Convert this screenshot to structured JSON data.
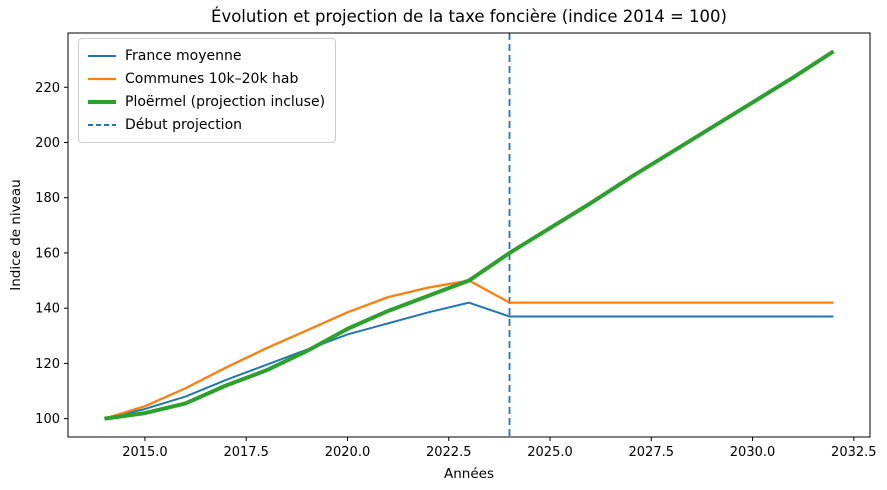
{
  "chart_data": {
    "type": "line",
    "title": "Évolution et projection de la taxe foncière (indice 2014 = 100)",
    "xlabel": "Années",
    "ylabel": "Indice de niveau",
    "grid": false,
    "legend_position": "upper-left",
    "xlim": [
      2013.1,
      2032.9
    ],
    "ylim": [
      93.35,
      239.65
    ],
    "x_tick_positions": [
      2015.0,
      2017.5,
      2020.0,
      2022.5,
      2025.0,
      2027.5,
      2030.0,
      2032.5
    ],
    "x_tick_labels": [
      "2015.0",
      "2017.5",
      "2020.0",
      "2022.5",
      "2025.0",
      "2027.5",
      "2030.0",
      "2032.5"
    ],
    "y_tick_positions": [
      100,
      120,
      140,
      160,
      180,
      200,
      220
    ],
    "y_tick_labels": [
      "100",
      "120",
      "140",
      "160",
      "180",
      "200",
      "220"
    ],
    "x": [
      2014,
      2015,
      2016,
      2017,
      2018,
      2019,
      2020,
      2021,
      2022,
      2023,
      2024,
      2025,
      2026,
      2027,
      2028,
      2029,
      2030,
      2031,
      2032
    ],
    "series": [
      {
        "name": "France moyenne",
        "color": "#1f77b4",
        "line_width": 2,
        "line_style": "solid",
        "values": [
          100,
          103.5,
          108,
          114,
          119.5,
          125,
          130.5,
          134.5,
          138.5,
          142,
          137,
          137,
          137,
          137,
          137,
          137,
          137,
          137,
          137
        ]
      },
      {
        "name": "Communes 10k–20k hab",
        "color": "#ff7f0e",
        "line_width": 2.3,
        "line_style": "solid",
        "values": [
          100,
          104.5,
          111,
          118.5,
          125.5,
          132,
          138.5,
          144,
          147.5,
          150,
          142,
          142,
          142,
          142,
          142,
          142,
          142,
          142,
          142
        ]
      },
      {
        "name": "Ploërmel (projection incluse)",
        "color": "#2ca02c",
        "line_width": 4,
        "line_style": "solid",
        "values": [
          100,
          102,
          105.5,
          112,
          117.5,
          124.5,
          132.5,
          139,
          144.5,
          150,
          160,
          169,
          178,
          187.5,
          196.5,
          205.5,
          214.5,
          223.5,
          233
        ]
      }
    ],
    "vline": {
      "label": "Début projection",
      "x": 2024,
      "color": "#1f77b4",
      "line_style": "dashed",
      "line_width": 1.8
    }
  }
}
